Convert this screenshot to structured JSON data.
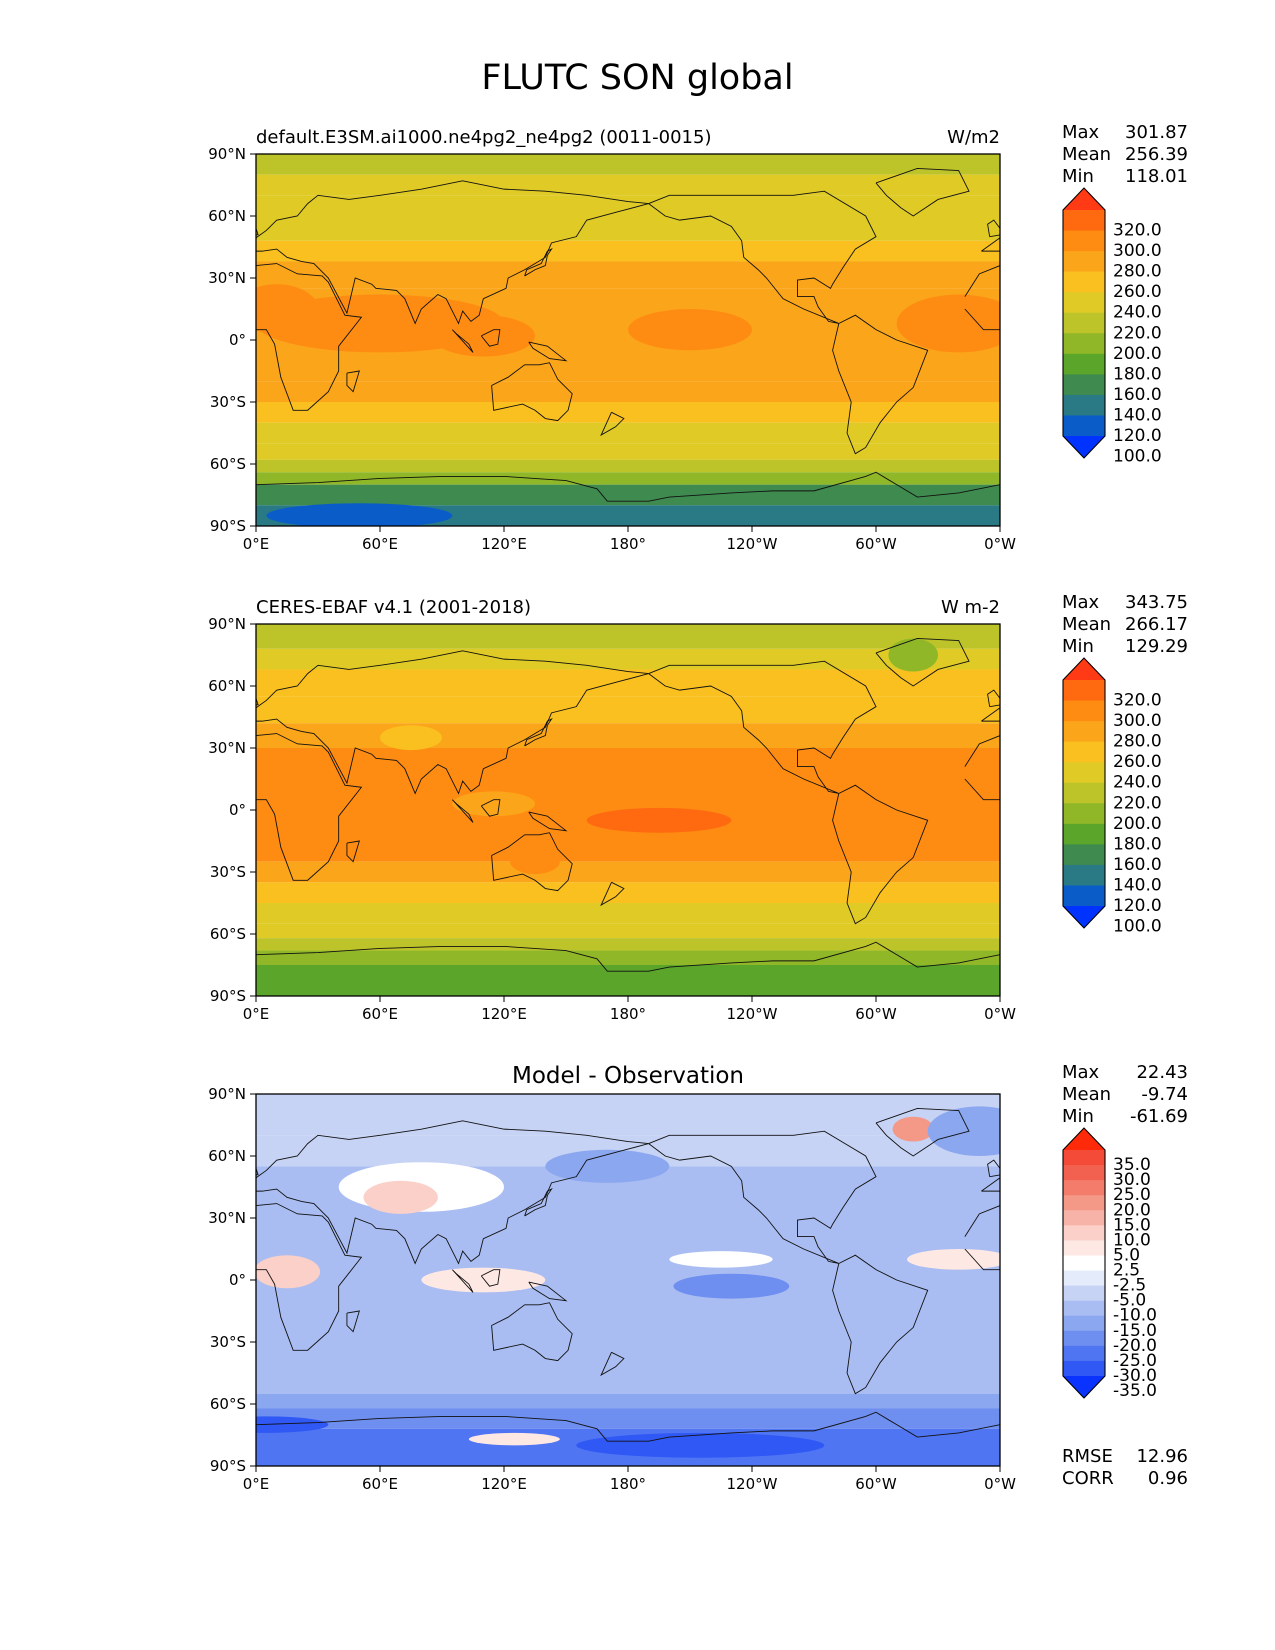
{
  "title": "FLUTC SON global",
  "lat_ticks": [
    "90°N",
    "60°N",
    "30°N",
    "0°",
    "30°S",
    "60°S",
    "90°S"
  ],
  "lon_ticks": [
    "0°E",
    "60°E",
    "120°E",
    "180°",
    "120°W",
    "60°W",
    "0°W"
  ],
  "panels": [
    {
      "id": "model",
      "left_title": "default.E3SM.ai1000.ne4pg2_ne4pg2 (0011-0015)",
      "center_title": "",
      "units": "W/m2",
      "stats": [
        {
          "label": "Max",
          "value": "301.87"
        },
        {
          "label": "Mean",
          "value": "256.39"
        },
        {
          "label": "Min",
          "value": "118.01"
        }
      ],
      "colorbar": {
        "ticks": [
          "320.0",
          "300.0",
          "280.0",
          "260.0",
          "240.0",
          "220.0",
          "200.0",
          "180.0",
          "160.0",
          "140.0",
          "120.0",
          "100.0"
        ],
        "colors": [
          "#ff3a14",
          "#ff6a10",
          "#ff8c12",
          "#fba51a",
          "#f9c020",
          "#dfca26",
          "#bdc42a",
          "#8fb727",
          "#5aa52a",
          "#3f8a4e",
          "#2a7a86",
          "#0a5cc8",
          "#0033ff"
        ]
      },
      "zonal_bands": [
        {
          "lat_top": 90,
          "lat_bottom": 80,
          "value": 210
        },
        {
          "lat_top": 80,
          "lat_bottom": 70,
          "value": 222
        },
        {
          "lat_top": 70,
          "lat_bottom": 60,
          "value": 232
        },
        {
          "lat_top": 60,
          "lat_bottom": 48,
          "value": 238
        },
        {
          "lat_top": 48,
          "lat_bottom": 38,
          "value": 248
        },
        {
          "lat_top": 38,
          "lat_bottom": 25,
          "value": 268
        },
        {
          "lat_top": 25,
          "lat_bottom": -20,
          "value": 274
        },
        {
          "lat_top": -20,
          "lat_bottom": -30,
          "value": 266
        },
        {
          "lat_top": -30,
          "lat_bottom": -40,
          "value": 252
        },
        {
          "lat_top": -40,
          "lat_bottom": -50,
          "value": 238
        },
        {
          "lat_top": -50,
          "lat_bottom": -58,
          "value": 224
        },
        {
          "lat_top": -58,
          "lat_bottom": -64,
          "value": 208
        },
        {
          "lat_top": -64,
          "lat_bottom": -70,
          "value": 188
        },
        {
          "lat_top": -70,
          "lat_bottom": -80,
          "value": 158
        },
        {
          "lat_top": -80,
          "lat_bottom": -90,
          "value": 138
        }
      ],
      "blobs": [
        {
          "lon": 60,
          "lat": 8,
          "rx": 60,
          "ry": 14,
          "value": 286
        },
        {
          "lon": 110,
          "lat": 2,
          "rx": 25,
          "ry": 10,
          "value": 286
        },
        {
          "lon": 210,
          "lat": 5,
          "rx": 30,
          "ry": 10,
          "value": 286
        },
        {
          "lon": 340,
          "lat": 8,
          "rx": 30,
          "ry": 14,
          "value": 286
        },
        {
          "lon": 10,
          "lat": 15,
          "rx": 20,
          "ry": 12,
          "value": 286
        },
        {
          "lon": 50,
          "lat": -85,
          "rx": 45,
          "ry": 6,
          "value": 112
        }
      ]
    },
    {
      "id": "obs",
      "left_title": "CERES-EBAF v4.1 (2001-2018)",
      "center_title": "",
      "units": "W m-2",
      "stats": [
        {
          "label": "Max",
          "value": "343.75"
        },
        {
          "label": "Mean",
          "value": "266.17"
        },
        {
          "label": "Min",
          "value": "129.29"
        }
      ],
      "colorbar": {
        "ticks": [
          "320.0",
          "300.0",
          "280.0",
          "260.0",
          "240.0",
          "220.0",
          "200.0",
          "180.0",
          "160.0",
          "140.0",
          "120.0",
          "100.0"
        ],
        "colors": [
          "#ff3a14",
          "#ff6a10",
          "#ff8c12",
          "#fba51a",
          "#f9c020",
          "#dfca26",
          "#bdc42a",
          "#8fb727",
          "#5aa52a",
          "#3f8a4e",
          "#2a7a86",
          "#0a5cc8",
          "#0033ff"
        ]
      },
      "zonal_bands": [
        {
          "lat_top": 90,
          "lat_bottom": 78,
          "value": 218
        },
        {
          "lat_top": 78,
          "lat_bottom": 68,
          "value": 228
        },
        {
          "lat_top": 68,
          "lat_bottom": 55,
          "value": 242
        },
        {
          "lat_top": 55,
          "lat_bottom": 42,
          "value": 255
        },
        {
          "lat_top": 42,
          "lat_bottom": 30,
          "value": 268
        },
        {
          "lat_top": 30,
          "lat_bottom": -25,
          "value": 282
        },
        {
          "lat_top": -25,
          "lat_bottom": -35,
          "value": 270
        },
        {
          "lat_top": -35,
          "lat_bottom": -45,
          "value": 252
        },
        {
          "lat_top": -45,
          "lat_bottom": -55,
          "value": 235
        },
        {
          "lat_top": -55,
          "lat_bottom": -62,
          "value": 222
        },
        {
          "lat_top": -62,
          "lat_bottom": -68,
          "value": 205
        },
        {
          "lat_top": -68,
          "lat_bottom": -75,
          "value": 186
        },
        {
          "lat_top": -75,
          "lat_bottom": -90,
          "value": 162
        }
      ],
      "blobs": [
        {
          "lon": 195,
          "lat": -5,
          "rx": 35,
          "ry": 6,
          "value": 305
        },
        {
          "lon": 40,
          "lat": 20,
          "rx": 20,
          "ry": 8,
          "value": 292
        },
        {
          "lon": 135,
          "lat": -25,
          "rx": 12,
          "ry": 6,
          "value": 292
        },
        {
          "lon": 318,
          "lat": 75,
          "rx": 12,
          "ry": 8,
          "value": 185
        },
        {
          "lon": 115,
          "lat": 3,
          "rx": 20,
          "ry": 6,
          "value": 265
        },
        {
          "lon": 75,
          "lat": 35,
          "rx": 15,
          "ry": 6,
          "value": 250
        }
      ]
    },
    {
      "id": "diff",
      "left_title": "",
      "center_title": "Model - Observation",
      "units": "",
      "stats": [
        {
          "label": "Max",
          "value": "22.43"
        },
        {
          "label": "Mean",
          "value": "-9.74"
        },
        {
          "label": "Min",
          "value": "-61.69"
        }
      ],
      "colorbar": {
        "ticks": [
          "35.0",
          "30.0",
          "25.0",
          "20.0",
          "15.0",
          "10.0",
          "5.0",
          "2.5",
          "-2.5",
          "-5.0",
          "-10.0",
          "-15.0",
          "-20.0",
          "-25.0",
          "-30.0",
          "-35.0"
        ],
        "colors": [
          "#ff2a0a",
          "#f44a38",
          "#f2614f",
          "#f47c6b",
          "#f49888",
          "#f7b3a8",
          "#fbd0c8",
          "#fde8e4",
          "#ffffff",
          "#e4ebfb",
          "#c6d3f5",
          "#a9bdf2",
          "#8ba7ef",
          "#6e8ef0",
          "#5075f2",
          "#2f58f5",
          "#0a33ff"
        ]
      },
      "stats_extra": [
        {
          "label": "RMSE",
          "value": "12.96"
        },
        {
          "label": "CORR",
          "value": "0.96"
        }
      ],
      "zonal_bands": [
        {
          "lat_top": 90,
          "lat_bottom": 70,
          "value": -8
        },
        {
          "lat_top": 70,
          "lat_bottom": 55,
          "value": -5
        },
        {
          "lat_top": 55,
          "lat_bottom": 15,
          "value": -10
        },
        {
          "lat_top": 15,
          "lat_bottom": -15,
          "value": -12
        },
        {
          "lat_top": -15,
          "lat_bottom": -55,
          "value": -14
        },
        {
          "lat_top": -55,
          "lat_bottom": -62,
          "value": -18
        },
        {
          "lat_top": -62,
          "lat_bottom": -72,
          "value": -24
        },
        {
          "lat_top": -72,
          "lat_bottom": -90,
          "value": -28
        }
      ],
      "blobs": [
        {
          "lon": 80,
          "lat": 45,
          "rx": 40,
          "ry": 12,
          "value": 0
        },
        {
          "lon": 70,
          "lat": 40,
          "rx": 18,
          "ry": 8,
          "value": 10
        },
        {
          "lon": 15,
          "lat": 4,
          "rx": 16,
          "ry": 8,
          "value": 10
        },
        {
          "lon": 110,
          "lat": 0,
          "rx": 30,
          "ry": 6,
          "value": 5
        },
        {
          "lon": 225,
          "lat": 10,
          "rx": 25,
          "ry": 4,
          "value": 0
        },
        {
          "lon": 340,
          "lat": 10,
          "rx": 25,
          "ry": 5,
          "value": 5
        },
        {
          "lon": 318,
          "lat": 73,
          "rx": 10,
          "ry": 6,
          "value": 20
        },
        {
          "lon": 125,
          "lat": -77,
          "rx": 22,
          "ry": 3,
          "value": 5
        },
        {
          "lon": 230,
          "lat": -3,
          "rx": 28,
          "ry": 6,
          "value": -22
        },
        {
          "lon": 215,
          "lat": -80,
          "rx": 60,
          "ry": 6,
          "value": -33
        },
        {
          "lon": 350,
          "lat": 72,
          "rx": 25,
          "ry": 12,
          "value": -15
        },
        {
          "lon": 170,
          "lat": 55,
          "rx": 30,
          "ry": 8,
          "value": -15
        },
        {
          "lon": 5,
          "lat": -70,
          "rx": 30,
          "ry": 4,
          "value": -30
        }
      ]
    }
  ]
}
